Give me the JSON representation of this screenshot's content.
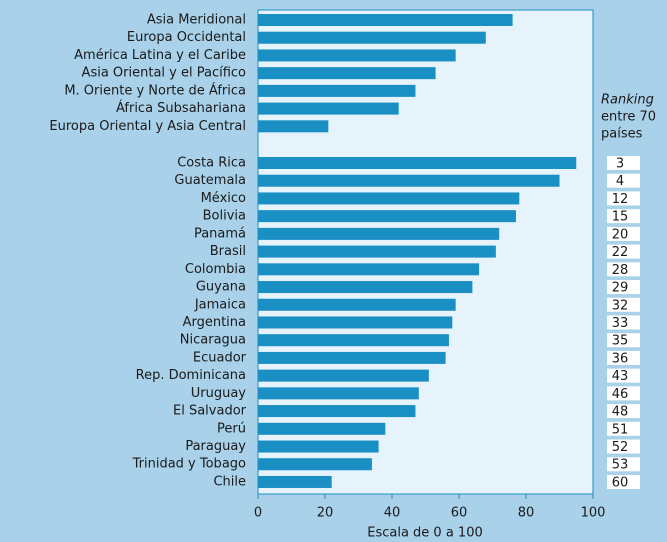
{
  "chart_data": {
    "type": "bar",
    "orientation": "horizontal",
    "color": "#1a8fc4",
    "groups": [
      {
        "categories": [
          "Asia Meridional",
          "Europa Occidental",
          "América Latina y el Caribe",
          "Asia Oriental y el Pacífico",
          "M. Oriente y Norte de África",
          "África Subsahariana",
          "Europa Oriental y Asia Central"
        ],
        "values": [
          76,
          68,
          59,
          53,
          47,
          42,
          21
        ]
      },
      {
        "categories": [
          "Costa Rica",
          "Guatemala",
          "México",
          "Bolivia",
          "Panamá",
          "Brasil",
          "Colombia",
          "Guyana",
          "Jamaica",
          "Argentina",
          "Nicaragua",
          "Ecuador",
          "Rep. Dominicana",
          "Uruguay",
          "El Salvador",
          "Perú",
          "Paraguay",
          "Trinidad y Tobago",
          "Chile"
        ],
        "values": [
          95,
          90,
          78,
          77,
          72,
          71,
          66,
          64,
          59,
          58,
          57,
          56,
          51,
          48,
          47,
          38,
          36,
          34,
          22
        ],
        "ranks": [
          3,
          4,
          12,
          15,
          20,
          22,
          28,
          29,
          32,
          33,
          35,
          36,
          43,
          46,
          48,
          51,
          52,
          53,
          60
        ]
      }
    ],
    "rank_header": [
      "Ranking",
      "entre 70",
      "países"
    ],
    "xlabel": "Escala de 0 a 100",
    "xlim": [
      0,
      100
    ],
    "xticks": [
      0,
      20,
      40,
      60,
      80,
      100
    ]
  }
}
